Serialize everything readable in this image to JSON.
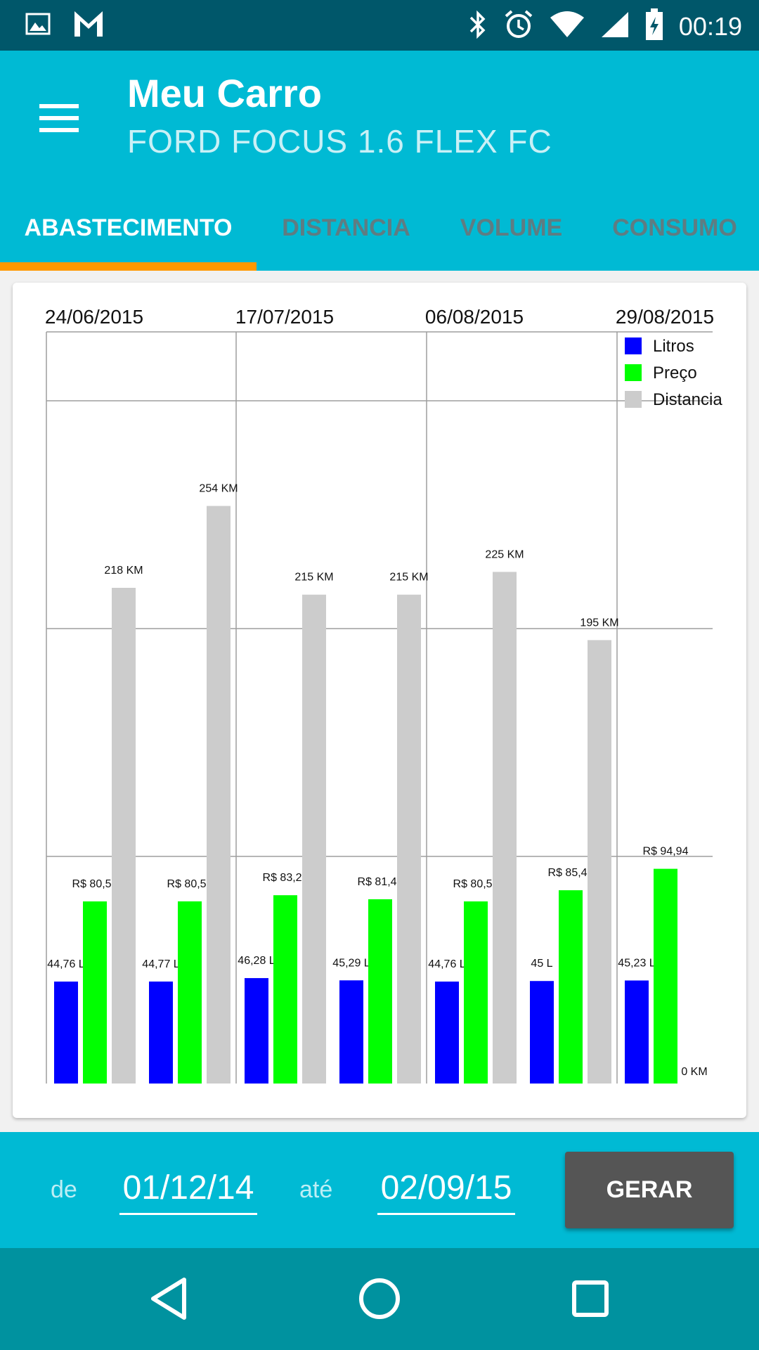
{
  "status_bar": {
    "time": "00:19",
    "left_icons": [
      "image-icon",
      "gmail-icon"
    ],
    "right_icons": [
      "bluetooth-icon",
      "alarm-icon",
      "wifi-icon",
      "signal-icon",
      "battery-charging-icon"
    ]
  },
  "app_bar": {
    "title": "Meu Carro",
    "subtitle": "FORD FOCUS 1.6 FLEX FC",
    "menu_icon": "hamburger-menu-icon"
  },
  "tabs": [
    {
      "label": "ABASTECIMENTO",
      "active": true
    },
    {
      "label": "DISTANCIA",
      "active": false
    },
    {
      "label": "VOLUME",
      "active": false
    },
    {
      "label": "CONSUMO",
      "active": false
    }
  ],
  "chart_data": {
    "type": "bar",
    "x_tick_labels": [
      "24/06/2015",
      "17/07/2015",
      "06/08/2015",
      "29/08/2015"
    ],
    "legend": [
      "Litros",
      "Preço",
      "Distancia"
    ],
    "legend_position": "top-right",
    "series": [
      {
        "name": "Litros",
        "color": "#0000ff",
        "values": [
          44.76,
          44.77,
          46.28,
          45.29,
          44.76,
          45,
          45.23
        ],
        "labels": [
          "44,76 L",
          "44,77 L",
          "46,28 L",
          "45,29 L",
          "44,76 L",
          "45 L",
          "45,23 L"
        ]
      },
      {
        "name": "Preço",
        "color": "#00ff00",
        "values": [
          80.52,
          80.54,
          83.26,
          81.48,
          80.52,
          85.46,
          94.94
        ],
        "labels": [
          "R$ 80,52",
          "R$ 80,54",
          "R$ 83,26",
          "R$ 81,48",
          "R$ 80,52",
          "R$ 85,46",
          "R$ 94,94"
        ]
      },
      {
        "name": "Distancia",
        "color": "#cccccc",
        "values": [
          218,
          254,
          215,
          215,
          225,
          195,
          0
        ],
        "labels": [
          "218 KM",
          "254 KM",
          "215 KM",
          "215 KM",
          "225 KM",
          "195 KM",
          "0 KM"
        ]
      }
    ],
    "grid": true
  },
  "filter": {
    "from_label": "de",
    "from_value": "01/12/14",
    "to_label": "até",
    "to_value": "02/09/15",
    "button_label": "GERAR"
  },
  "nav_bar": {
    "icons": [
      "back-icon",
      "home-icon",
      "recents-icon"
    ]
  }
}
